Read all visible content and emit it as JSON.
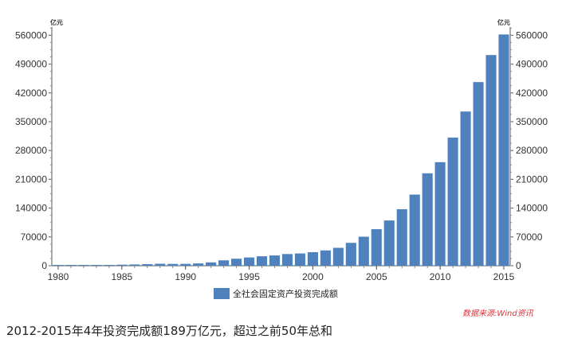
{
  "chart_data": {
    "type": "bar",
    "unit_left": "亿元",
    "unit_right": "亿元",
    "x": [
      1980,
      1981,
      1982,
      1983,
      1984,
      1985,
      1986,
      1987,
      1988,
      1989,
      1990,
      1991,
      1992,
      1993,
      1994,
      1995,
      1996,
      1997,
      1998,
      1999,
      2000,
      2001,
      2002,
      2003,
      2004,
      2005,
      2006,
      2007,
      2008,
      2009,
      2010,
      2011,
      2012,
      2013,
      2014,
      2015
    ],
    "values": [
      911,
      961,
      1230,
      1430,
      1833,
      2543,
      3121,
      3792,
      4754,
      4410,
      4517,
      5595,
      8080,
      13072,
      17042,
      20019,
      22974,
      24941,
      28406,
      29855,
      32918,
      37214,
      43500,
      55567,
      70477,
      88774,
      109998,
      137324,
      172828,
      224599,
      251684,
      311485,
      374695,
      446294,
      512021,
      561999
    ],
    "x_ticks": [
      1980,
      1985,
      1990,
      1995,
      2000,
      2005,
      2010,
      2015
    ],
    "y_ticks": [
      0,
      70000,
      140000,
      210000,
      280000,
      350000,
      420000,
      490000,
      560000
    ],
    "ylim": [
      0,
      580000
    ],
    "series_name": "全社会固定资产投资完成额",
    "bar_color": "#4f81bd",
    "legend_position": "bottom-center",
    "grid": false
  },
  "source": "数据来源:Wind资讯",
  "source_color": "#e0303a",
  "caption": "2012-2015年4年投资完成额189万亿元，超过之前50年总和"
}
